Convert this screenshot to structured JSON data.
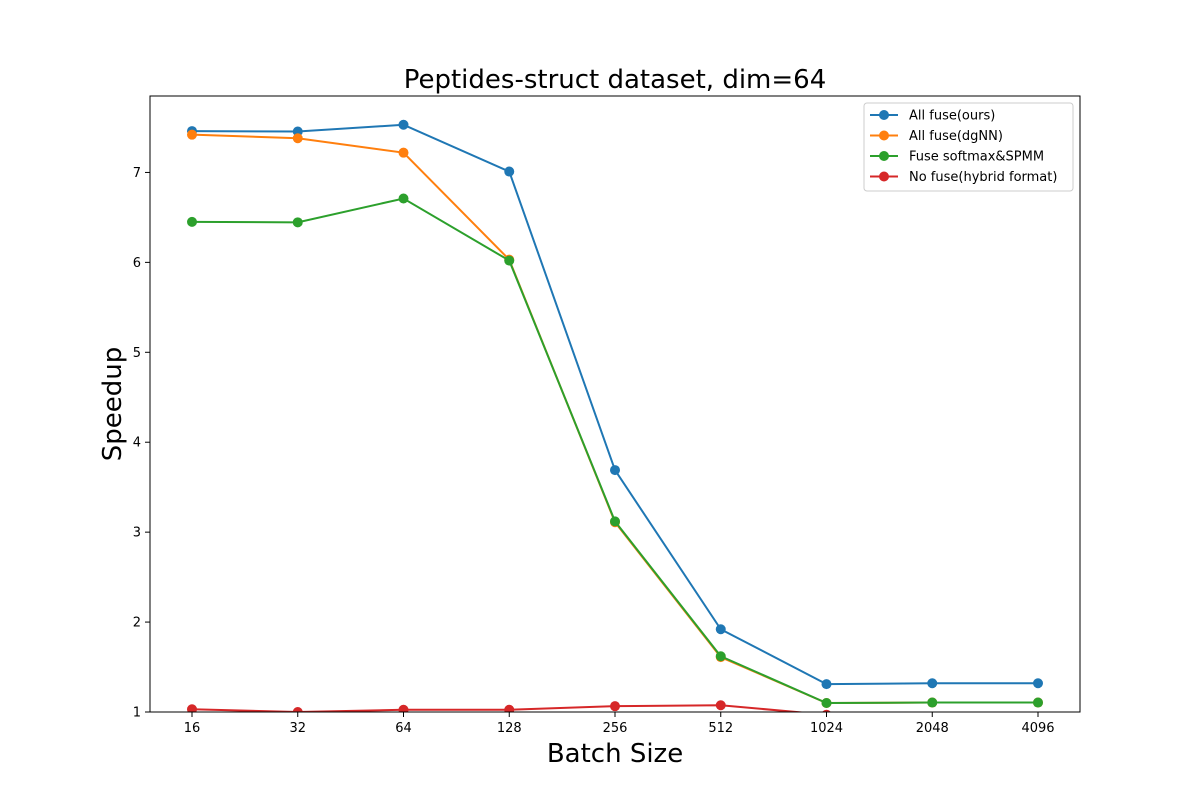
{
  "chart_data": {
    "type": "line",
    "title": "Peptides-struct dataset, dim=64",
    "xlabel": "Batch Size",
    "ylabel": "Speedup",
    "categories": [
      "16",
      "32",
      "64",
      "128",
      "256",
      "512",
      "1024",
      "2048",
      "4096"
    ],
    "yticks": [
      1,
      2,
      3,
      4,
      5,
      6,
      7
    ],
    "ylim": [
      1.0,
      7.85
    ],
    "grid": false,
    "legend_position": "top-right",
    "series": [
      {
        "name": "All fuse(ours)",
        "color": "#1f77b4",
        "values": [
          7.46,
          7.455,
          7.53,
          7.01,
          3.69,
          1.92,
          1.31,
          1.32,
          1.32
        ]
      },
      {
        "name": "All fuse(dgNN)",
        "color": "#ff7f0e",
        "values": [
          7.42,
          7.38,
          7.22,
          6.03,
          3.11,
          1.61,
          1.1,
          1.105,
          1.105
        ]
      },
      {
        "name": "Fuse softmax&SPMM",
        "color": "#2ca02c",
        "values": [
          6.45,
          6.445,
          6.71,
          6.02,
          3.12,
          1.62,
          1.1,
          1.105,
          1.105
        ]
      },
      {
        "name": "No fuse(hybrid format)",
        "color": "#d62728",
        "values": [
          1.03,
          1.0,
          1.025,
          1.025,
          1.065,
          1.075,
          0.97,
          null,
          null
        ]
      }
    ]
  }
}
